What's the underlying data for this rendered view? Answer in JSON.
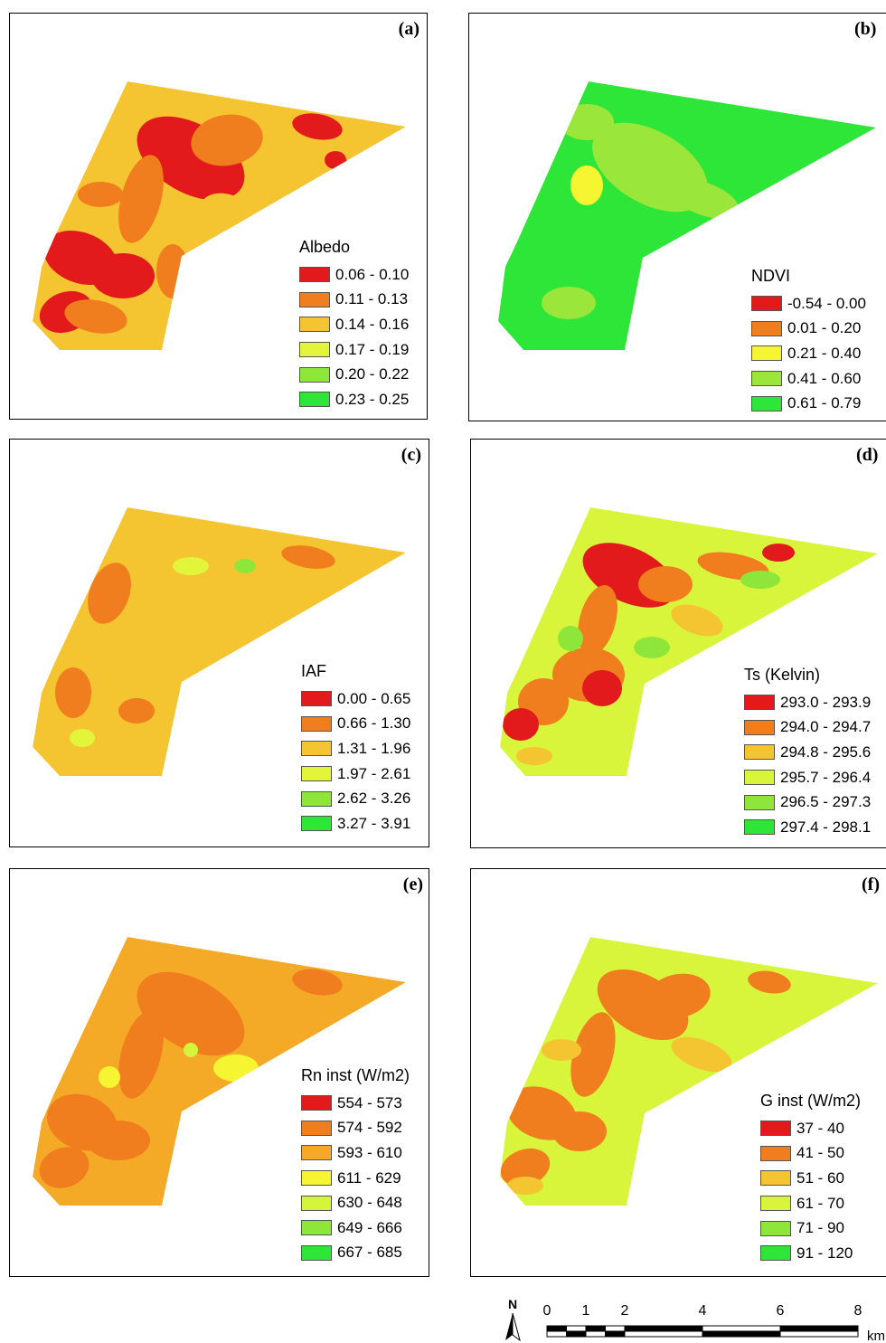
{
  "panels": [
    {
      "id": "a",
      "letter": "(a)",
      "legend_title": "Albedo",
      "classes": [
        {
          "label": "0.06 - 0.10",
          "color": "#e31a1c"
        },
        {
          "label": "0.11 - 0.13",
          "color": "#f07d1e"
        },
        {
          "label": "0.14 - 0.16",
          "color": "#f5c431"
        },
        {
          "label": "0.17 - 0.19",
          "color": "#e3f53b"
        },
        {
          "label": "0.20 - 0.22",
          "color": "#8ee63a"
        },
        {
          "label": "0.23 - 0.25",
          "color": "#2ee637"
        }
      ]
    },
    {
      "id": "b",
      "letter": "(b)",
      "legend_title": "NDVI",
      "classes": [
        {
          "label": "-0.54 - 0.00",
          "color": "#e31a1c"
        },
        {
          "label": "0.01 - 0.20",
          "color": "#f07d1e"
        },
        {
          "label": "0.21 - 0.40",
          "color": "#f5f531"
        },
        {
          "label": "0.41 - 0.60",
          "color": "#9be63a"
        },
        {
          "label": "0.61 - 0.79",
          "color": "#2ee637"
        }
      ]
    },
    {
      "id": "c",
      "letter": "(c)",
      "legend_title": "IAF",
      "classes": [
        {
          "label": "0.00 - 0.65",
          "color": "#e31a1c"
        },
        {
          "label": "0.66 - 1.30",
          "color": "#f07d1e"
        },
        {
          "label": "1.31 - 1.96",
          "color": "#f5c431"
        },
        {
          "label": "1.97 - 2.61",
          "color": "#e3f53b"
        },
        {
          "label": "2.62 - 3.26",
          "color": "#8ee63a"
        },
        {
          "label": "3.27 - 3.91",
          "color": "#2ee637"
        }
      ]
    },
    {
      "id": "d",
      "letter": "(d)",
      "legend_title": "Ts (Kelvin)",
      "classes": [
        {
          "label": "293.0 - 293.9",
          "color": "#e31a1c"
        },
        {
          "label": "294.0 - 294.7",
          "color": "#f07d1e"
        },
        {
          "label": "294.8 - 295.6",
          "color": "#f5c431"
        },
        {
          "label": "295.7 - 296.4",
          "color": "#d9f53b"
        },
        {
          "label": "296.5 - 297.3",
          "color": "#8ee63a"
        },
        {
          "label": "297.4 - 298.1",
          "color": "#2ee637"
        }
      ]
    },
    {
      "id": "e",
      "letter": "(e)",
      "legend_title": "Rn inst (W/m2)",
      "classes": [
        {
          "label": "554 - 573",
          "color": "#e31a1c"
        },
        {
          "label": "574 - 592",
          "color": "#f07d1e"
        },
        {
          "label": "593 - 610",
          "color": "#f5aa27"
        },
        {
          "label": "611 - 629",
          "color": "#f5f531"
        },
        {
          "label": "630 - 648",
          "color": "#d4f53b"
        },
        {
          "label": "649 - 666",
          "color": "#8ee63a"
        },
        {
          "label": "667 - 685",
          "color": "#2ee637"
        }
      ]
    },
    {
      "id": "f",
      "letter": "(f)",
      "legend_title": "G inst (W/m2)",
      "classes": [
        {
          "label": "37 - 40",
          "color": "#e31a1c"
        },
        {
          "label": "41 - 50",
          "color": "#f07d1e"
        },
        {
          "label": "51 - 60",
          "color": "#f5c431"
        },
        {
          "label": "61 - 70",
          "color": "#d9f53b"
        },
        {
          "label": "71 - 90",
          "color": "#8ee63a"
        },
        {
          "label": "91 - 120",
          "color": "#2ee637"
        }
      ]
    }
  ],
  "north_arrow": "N",
  "scale_bar": {
    "ticks": [
      "0",
      "1",
      "2",
      "4",
      "6",
      "8"
    ],
    "unit": "km"
  }
}
